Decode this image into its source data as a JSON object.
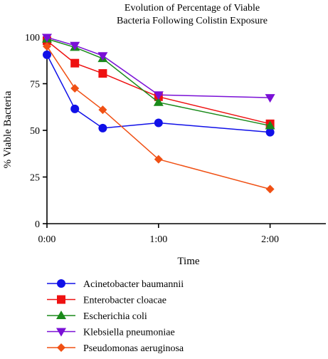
{
  "chart_data": {
    "type": "line",
    "title_lines": [
      "Evolution of Percentage of Viable",
      "Bacteria Following Colistin Exposure"
    ],
    "xlabel": "Time",
    "ylabel": "% Viable Bacteria",
    "x_ticks": [
      {
        "value": 0,
        "label": "0:00"
      },
      {
        "value": 60,
        "label": "1:00"
      },
      {
        "value": 120,
        "label": "2:00"
      }
    ],
    "y_ticks": [
      0,
      25,
      50,
      75,
      100
    ],
    "xlim": [
      0,
      150
    ],
    "ylim": [
      0,
      100
    ],
    "grid": false,
    "legend_position": "bottom",
    "x_unit": "minutes",
    "x": [
      0,
      15,
      30,
      60,
      120
    ],
    "series": [
      {
        "name": "Acinetobacter baumannii",
        "color": "#1010e8",
        "marker": "circle",
        "x": [
          0,
          15,
          30,
          60,
          120
        ],
        "values": [
          90.5,
          61.5,
          51.2,
          54.0,
          49.0
        ]
      },
      {
        "name": "Enterobacter cloacae",
        "color": "#ee1111",
        "marker": "square",
        "x": [
          0,
          15,
          30,
          60,
          120
        ],
        "values": [
          98.0,
          86.0,
          80.5,
          68.0,
          53.5
        ]
      },
      {
        "name": "Escherichia coli",
        "color": "#1a8a1a",
        "marker": "triangle-up",
        "x": [
          0,
          15,
          30,
          60,
          120
        ],
        "values": [
          99.0,
          94.5,
          88.5,
          65.0,
          52.5
        ]
      },
      {
        "name": "Klebsiella pneumoniae",
        "color": "#7a10d6",
        "marker": "triangle-down",
        "x": [
          0,
          15,
          30,
          60,
          120
        ],
        "values": [
          99.8,
          95.5,
          90.0,
          69.0,
          67.5
        ]
      },
      {
        "name": "Pseudomonas aeruginosa",
        "color": "#f05014",
        "marker": "diamond",
        "x": [
          0,
          15,
          30,
          60,
          120
        ],
        "values": [
          95.0,
          72.5,
          61.0,
          34.5,
          18.5
        ]
      }
    ]
  }
}
